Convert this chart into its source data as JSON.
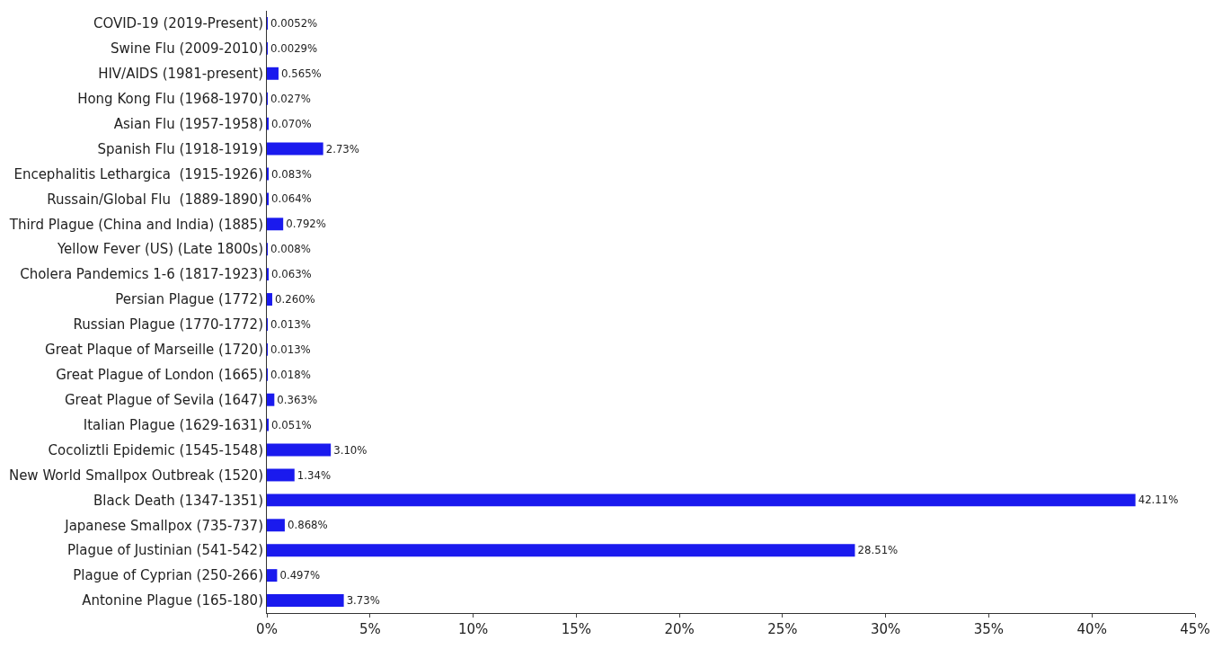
{
  "chart_data": {
    "type": "bar",
    "orientation": "horizontal",
    "categories": [
      "COVID-19 (2019-Present)",
      "Swine Flu (2009-2010)",
      "HIV/AIDS (1981-present)",
      "Hong Kong Flu (1968-1970)",
      "Asian Flu (1957-1958)",
      "Spanish Flu (1918-1919)",
      "Encephalitis Lethargica  (1915-1926)",
      "Russain/Global Flu  (1889-1890)",
      "Third Plague (China and India) (1885)",
      "Yellow Fever (US) (Late 1800s)",
      "Cholera Pandemics 1-6 (1817-1923)",
      "Persian Plague (1772)",
      "Russian Plague (1770-1772)",
      "Great Plaque of Marseille (1720)",
      "Great Plague of London (1665)",
      "Great Plague of Sevila (1647)",
      "Italian Plague (1629-1631)",
      "Cocoliztli Epidemic (1545-1548)",
      "New World Smallpox Outbreak (1520)",
      "Black Death (1347-1351)",
      "Japanese Smallpox (735-737)",
      "Plague of Justinian (541-542)",
      "Plague of Cyprian (250-266)",
      "Antonine Plague (165-180)"
    ],
    "values": [
      0.0052,
      0.0029,
      0.565,
      0.027,
      0.07,
      2.73,
      0.083,
      0.064,
      0.792,
      0.008,
      0.063,
      0.26,
      0.013,
      0.013,
      0.018,
      0.363,
      0.051,
      3.1,
      1.34,
      42.11,
      0.868,
      28.51,
      0.497,
      3.73
    ],
    "value_labels": [
      "0.0052%",
      "0.0029%",
      "0.565%",
      "0.027%",
      "0.070%",
      "2.73%",
      "0.083%",
      "0.064%",
      "0.792%",
      "0.008%",
      "0.063%",
      "0.260%",
      "0.013%",
      "0.013%",
      "0.018%",
      "0.363%",
      "0.051%",
      "3.10%",
      "1.34%",
      "42.11%",
      "0.868%",
      "28.51%",
      "0.497%",
      "3.73%"
    ],
    "color": "#1a1aee",
    "xlim": [
      0,
      45
    ],
    "xticks": [
      {
        "value": 0,
        "label": "0%"
      },
      {
        "value": 5,
        "label": "5%"
      },
      {
        "value": 10,
        "label": "10%"
      },
      {
        "value": 15,
        "label": "15%"
      },
      {
        "value": 20,
        "label": "20%"
      },
      {
        "value": 25,
        "label": "25%"
      },
      {
        "value": 30,
        "label": "30%"
      },
      {
        "value": 35,
        "label": "35%"
      },
      {
        "value": 40,
        "label": "40%"
      },
      {
        "value": 45,
        "label": "45%"
      }
    ],
    "grid": false
  }
}
